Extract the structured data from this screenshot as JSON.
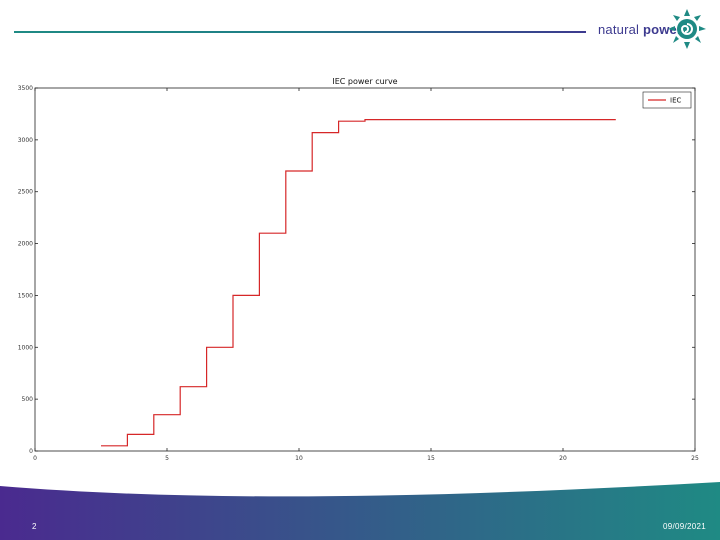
{
  "header": {
    "logo_word1": "natural",
    "logo_word2": "power",
    "brand_color": "#3d3a8f",
    "accent_color": "#1f8a84"
  },
  "footer": {
    "slide_number": "2",
    "date": "09/09/2021",
    "gradient_colors": [
      "#4a2a8f",
      "#1f8a84"
    ]
  },
  "chart_data": {
    "type": "line",
    "title": "IEC power curve",
    "xlabel": "",
    "ylabel": "",
    "xlim": [
      0,
      25
    ],
    "ylim": [
      0,
      3500
    ],
    "xticks": [
      0,
      5,
      10,
      15,
      20,
      25
    ],
    "yticks": [
      0,
      500,
      1000,
      1500,
      2000,
      2500,
      3000,
      3500
    ],
    "legend_position": "top-right",
    "grid": false,
    "series": [
      {
        "name": "IEC",
        "color": "#d62728",
        "x": [
          2.5,
          3.5,
          3.5,
          4.5,
          4.5,
          5.5,
          5.5,
          6.5,
          6.5,
          7.5,
          7.5,
          8.5,
          8.5,
          9.5,
          9.5,
          10.5,
          10.5,
          11.5,
          11.5,
          12.5,
          12.5,
          22
        ],
        "y": [
          50,
          50,
          160,
          160,
          350,
          350,
          620,
          620,
          1000,
          1000,
          1500,
          1500,
          2100,
          2100,
          2700,
          2700,
          3070,
          3070,
          3180,
          3180,
          3195,
          3195
        ]
      }
    ]
  }
}
